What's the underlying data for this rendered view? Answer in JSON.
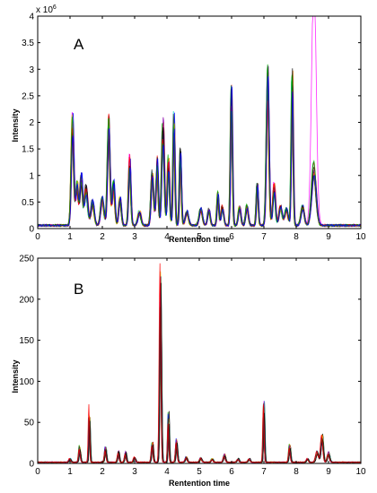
{
  "colors": {
    "trace_palette": [
      "#000000",
      "#ff0000",
      "#00aa00",
      "#0000ff",
      "#00cccc",
      "#ff00ff",
      "#cccc00",
      "#ff8800",
      "#8800aa",
      "#333333"
    ],
    "axis": "#000000",
    "background": "#ffffff"
  },
  "chart_data": [
    {
      "type": "line",
      "panel_label": "A",
      "xlabel": "Rentention time",
      "ylabel": "Intensity",
      "exponent_label": "x 10",
      "exponent_power": "6",
      "xlim": [
        0,
        10
      ],
      "ylim": [
        0,
        4
      ],
      "x_ticks": [
        "0",
        "1",
        "2",
        "3",
        "4",
        "5",
        "6",
        "7",
        "8",
        "9",
        "10"
      ],
      "y_ticks": [
        "0",
        "0.5",
        "1",
        "1.5",
        "2",
        "2.5",
        "3",
        "3.5",
        "4"
      ],
      "n_traces": 14,
      "peak_variation": 0.18,
      "baseline": 0.06,
      "peaks": [
        {
          "rt": 1.08,
          "height": 1.95,
          "width": 0.04
        },
        {
          "rt": 1.22,
          "height": 0.75,
          "width": 0.04
        },
        {
          "rt": 1.35,
          "height": 0.9,
          "width": 0.04
        },
        {
          "rt": 1.5,
          "height": 0.7,
          "width": 0.05
        },
        {
          "rt": 1.7,
          "height": 0.45,
          "width": 0.05
        },
        {
          "rt": 2.0,
          "height": 0.5,
          "width": 0.05
        },
        {
          "rt": 2.2,
          "height": 1.95,
          "width": 0.04
        },
        {
          "rt": 2.35,
          "height": 0.8,
          "width": 0.04
        },
        {
          "rt": 2.55,
          "height": 0.5,
          "width": 0.04
        },
        {
          "rt": 2.85,
          "height": 1.25,
          "width": 0.035
        },
        {
          "rt": 3.15,
          "height": 0.25,
          "width": 0.05
        },
        {
          "rt": 3.55,
          "height": 0.95,
          "width": 0.04
        },
        {
          "rt": 3.7,
          "height": 1.2,
          "width": 0.035
        },
        {
          "rt": 3.88,
          "height": 1.85,
          "width": 0.04
        },
        {
          "rt": 4.05,
          "height": 1.2,
          "width": 0.035
        },
        {
          "rt": 4.22,
          "height": 1.95,
          "width": 0.03
        },
        {
          "rt": 4.42,
          "height": 1.35,
          "width": 0.03
        },
        {
          "rt": 4.62,
          "height": 0.25,
          "width": 0.05
        },
        {
          "rt": 5.05,
          "height": 0.3,
          "width": 0.05
        },
        {
          "rt": 5.3,
          "height": 0.3,
          "width": 0.04
        },
        {
          "rt": 5.58,
          "height": 0.6,
          "width": 0.03
        },
        {
          "rt": 5.72,
          "height": 0.35,
          "width": 0.04
        },
        {
          "rt": 6.0,
          "height": 2.45,
          "width": 0.03
        },
        {
          "rt": 6.25,
          "height": 0.35,
          "width": 0.04
        },
        {
          "rt": 6.48,
          "height": 0.35,
          "width": 0.04
        },
        {
          "rt": 6.8,
          "height": 0.75,
          "width": 0.03
        },
        {
          "rt": 7.12,
          "height": 2.85,
          "width": 0.04
        },
        {
          "rt": 7.32,
          "height": 0.75,
          "width": 0.04
        },
        {
          "rt": 7.52,
          "height": 0.35,
          "width": 0.05
        },
        {
          "rt": 7.7,
          "height": 0.3,
          "width": 0.05
        },
        {
          "rt": 7.88,
          "height": 2.7,
          "width": 0.03
        },
        {
          "rt": 8.2,
          "height": 0.35,
          "width": 0.05
        },
        {
          "rt": 8.55,
          "height": 1.1,
          "width": 0.07
        }
      ],
      "special_traces": [
        {
          "color_index": 5,
          "extra_peaks": [
            {
              "rt": 8.55,
              "height": 3.7,
              "width": 0.07
            }
          ]
        }
      ]
    },
    {
      "type": "line",
      "panel_label": "B",
      "xlabel": "Rentention time",
      "ylabel": "Intensity",
      "xlim": [
        0,
        10
      ],
      "ylim": [
        0,
        250
      ],
      "x_ticks": [
        "0",
        "1",
        "2",
        "3",
        "4",
        "5",
        "6",
        "7",
        "8",
        "9",
        "10"
      ],
      "y_ticks": [
        "0",
        "50",
        "100",
        "150",
        "200",
        "250"
      ],
      "n_traces": 12,
      "peak_variation": 0.25,
      "baseline": 1.5,
      "peaks": [
        {
          "rt": 1.0,
          "height": 4,
          "width": 0.03
        },
        {
          "rt": 1.3,
          "height": 18,
          "width": 0.025
        },
        {
          "rt": 1.6,
          "height": 62,
          "width": 0.02
        },
        {
          "rt": 2.1,
          "height": 18,
          "width": 0.025
        },
        {
          "rt": 2.5,
          "height": 12,
          "width": 0.025
        },
        {
          "rt": 2.72,
          "height": 12,
          "width": 0.025
        },
        {
          "rt": 3.0,
          "height": 6,
          "width": 0.03
        },
        {
          "rt": 3.55,
          "height": 24,
          "width": 0.025
        },
        {
          "rt": 3.8,
          "height": 215,
          "width": 0.025
        },
        {
          "rt": 4.05,
          "height": 55,
          "width": 0.02
        },
        {
          "rt": 4.3,
          "height": 25,
          "width": 0.025
        },
        {
          "rt": 4.6,
          "height": 6,
          "width": 0.03
        },
        {
          "rt": 5.05,
          "height": 5,
          "width": 0.03
        },
        {
          "rt": 5.4,
          "height": 4,
          "width": 0.03
        },
        {
          "rt": 5.78,
          "height": 9,
          "width": 0.03
        },
        {
          "rt": 6.2,
          "height": 4,
          "width": 0.03
        },
        {
          "rt": 6.55,
          "height": 4,
          "width": 0.03
        },
        {
          "rt": 7.0,
          "height": 68,
          "width": 0.02
        },
        {
          "rt": 7.8,
          "height": 20,
          "width": 0.025
        },
        {
          "rt": 8.35,
          "height": 4,
          "width": 0.03
        },
        {
          "rt": 8.65,
          "height": 12,
          "width": 0.04
        },
        {
          "rt": 8.8,
          "height": 30,
          "width": 0.035
        },
        {
          "rt": 9.0,
          "height": 12,
          "width": 0.035
        }
      ],
      "special_traces": [
        {
          "color_index": 4,
          "extra_peaks": [
            {
              "rt": 3.8,
              "height": 12,
              "width": 0.025
            }
          ]
        }
      ]
    }
  ]
}
